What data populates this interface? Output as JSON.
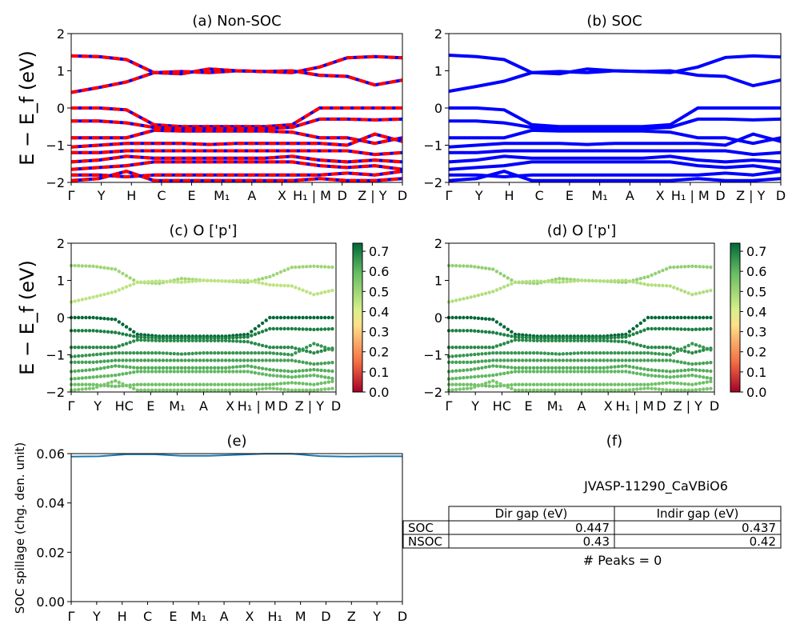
{
  "panels": {
    "a": {
      "title": "(a) Non-SOC"
    },
    "b": {
      "title": "(b) SOC"
    },
    "c": {
      "title": "(c)  O ['p']"
    },
    "d": {
      "title": "(d) O ['p']"
    },
    "e": {
      "title": "(e)"
    },
    "f": {
      "title": "(f)"
    }
  },
  "band_axis": {
    "ylabel": "E − E_f (eV)",
    "ylim": [
      -2,
      2
    ],
    "yticks": [
      "2",
      "1",
      "0",
      "−1",
      "−2"
    ]
  },
  "kpath_top": [
    "Γ",
    "Y",
    "H",
    "C",
    "E",
    "M₁",
    "A",
    "X",
    "H₁ | M",
    "D",
    "Z | Y",
    "D"
  ],
  "kpath_mid": [
    "Γ",
    "Y",
    "HC",
    "E",
    "M₁",
    "A",
    "X",
    "H₁ | M",
    "D",
    "Z | Y",
    "D"
  ],
  "kpath_bottom": [
    "Γ",
    "Y",
    "H",
    "C",
    "E",
    "M₁",
    "A",
    "X",
    "H₁",
    "M",
    "D",
    "Z",
    "Y",
    "D"
  ],
  "colorbar": {
    "ticks": [
      "0.0",
      "0.1",
      "0.2",
      "0.3",
      "0.4",
      "0.5",
      "0.6",
      "0.7"
    ],
    "range": [
      0.0,
      0.74
    ]
  },
  "colors": {
    "nonsoc_a": "#ff0000",
    "nonsoc_b": "#0000ff",
    "soc": "#0000ff",
    "spillage": "#1f77b4"
  },
  "table": {
    "title": "JVASP-11290_CaVBiO6",
    "headers": [
      "Dir gap (eV)",
      "Indir gap (eV)"
    ],
    "rows": [
      {
        "label": "SOC",
        "dir": "0.447",
        "indir": "0.437"
      },
      {
        "label": "NSOC",
        "dir": "0.43",
        "indir": "0.42"
      }
    ],
    "peaks": "# Peaks = 0"
  },
  "chart_data": [
    {
      "type": "line",
      "title": "(a) Non-SOC",
      "ylabel": "E − E_f (eV)",
      "ylim": [
        -2,
        2
      ],
      "x_ticks": [
        "Γ",
        "Y",
        "H",
        "C",
        "E",
        "M₁",
        "A",
        "X",
        "H₁ | M",
        "D",
        "Z | Y",
        "D"
      ],
      "x": [
        0,
        1,
        2,
        3,
        4,
        5,
        6,
        7,
        8,
        9,
        10,
        11,
        12
      ],
      "series": [
        {
          "values": [
            1.4,
            1.38,
            1.3,
            0.95,
            0.92,
            1.05,
            1.0,
            0.98,
            0.95,
            1.1,
            1.35,
            1.38,
            1.35
          ]
        },
        {
          "values": [
            0.42,
            0.55,
            0.7,
            0.95,
            0.98,
            0.95,
            1.0,
            0.98,
            1.0,
            0.88,
            0.85,
            0.62,
            0.75
          ]
        },
        {
          "values": [
            0.0,
            0.0,
            -0.05,
            -0.45,
            -0.5,
            -0.5,
            -0.5,
            -0.5,
            -0.45,
            0.0,
            0.0,
            0.0,
            0.0
          ]
        },
        {
          "values": [
            -0.35,
            -0.35,
            -0.4,
            -0.52,
            -0.55,
            -0.55,
            -0.55,
            -0.55,
            -0.52,
            -0.3,
            -0.3,
            -0.32,
            -0.3
          ]
        },
        {
          "values": [
            -0.8,
            -0.8,
            -0.8,
            -0.6,
            -0.62,
            -0.62,
            -0.62,
            -0.62,
            -0.65,
            -0.8,
            -0.8,
            -0.95,
            -0.8
          ]
        },
        {
          "values": [
            -1.05,
            -1.0,
            -0.95,
            -0.95,
            -0.95,
            -0.98,
            -0.95,
            -0.95,
            -0.95,
            -0.95,
            -1.0,
            -0.7,
            -0.9
          ]
        },
        {
          "values": [
            -1.2,
            -1.2,
            -1.15,
            -1.15,
            -1.15,
            -1.15,
            -1.15,
            -1.15,
            -1.15,
            -1.15,
            -1.15,
            -1.25,
            -1.2
          ]
        },
        {
          "values": [
            -1.45,
            -1.4,
            -1.3,
            -1.35,
            -1.35,
            -1.35,
            -1.35,
            -1.35,
            -1.3,
            -1.4,
            -1.45,
            -1.4,
            -1.45
          ]
        },
        {
          "values": [
            -1.65,
            -1.6,
            -1.55,
            -1.45,
            -1.45,
            -1.45,
            -1.45,
            -1.45,
            -1.45,
            -1.55,
            -1.6,
            -1.55,
            -1.65
          ]
        },
        {
          "values": [
            -1.8,
            -1.8,
            -1.85,
            -1.8,
            -1.8,
            -1.8,
            -1.8,
            -1.8,
            -1.8,
            -1.8,
            -1.75,
            -1.8,
            -1.7
          ]
        },
        {
          "values": [
            -1.95,
            -1.9,
            -1.7,
            -1.95,
            -1.95,
            -1.95,
            -1.95,
            -1.95,
            -1.95,
            -1.9,
            -1.95,
            -1.95,
            -1.9
          ]
        }
      ]
    },
    {
      "type": "line",
      "title": "(b) SOC",
      "ylim": [
        -2,
        2
      ],
      "x_ticks": [
        "Γ",
        "Y",
        "H",
        "C",
        "E",
        "M₁",
        "A",
        "X",
        "H₁ | M",
        "D",
        "Z | Y",
        "D"
      ],
      "x": [
        0,
        1,
        2,
        3,
        4,
        5,
        6,
        7,
        8,
        9,
        10,
        11,
        12
      ],
      "series": [
        {
          "values": [
            1.42,
            1.38,
            1.3,
            0.95,
            0.92,
            1.05,
            1.0,
            0.98,
            0.95,
            1.1,
            1.36,
            1.4,
            1.37
          ]
        },
        {
          "values": [
            0.45,
            0.58,
            0.72,
            0.95,
            0.98,
            0.95,
            1.0,
            0.98,
            1.0,
            0.88,
            0.85,
            0.6,
            0.75
          ]
        },
        {
          "values": [
            0.0,
            0.0,
            -0.05,
            -0.45,
            -0.5,
            -0.5,
            -0.5,
            -0.5,
            -0.45,
            0.0,
            0.0,
            0.0,
            0.0
          ]
        },
        {
          "values": [
            -0.35,
            -0.35,
            -0.4,
            -0.52,
            -0.55,
            -0.55,
            -0.55,
            -0.55,
            -0.52,
            -0.3,
            -0.3,
            -0.32,
            -0.3
          ]
        },
        {
          "values": [
            -0.8,
            -0.8,
            -0.8,
            -0.6,
            -0.62,
            -0.62,
            -0.62,
            -0.62,
            -0.65,
            -0.8,
            -0.8,
            -0.95,
            -0.8
          ]
        },
        {
          "values": [
            -1.05,
            -1.0,
            -0.95,
            -0.95,
            -0.95,
            -0.98,
            -0.95,
            -0.95,
            -0.95,
            -0.95,
            -1.0,
            -0.7,
            -0.9
          ]
        },
        {
          "values": [
            -1.2,
            -1.2,
            -1.15,
            -1.15,
            -1.15,
            -1.15,
            -1.15,
            -1.15,
            -1.15,
            -1.15,
            -1.15,
            -1.25,
            -1.2
          ]
        },
        {
          "values": [
            -1.45,
            -1.4,
            -1.3,
            -1.35,
            -1.35,
            -1.35,
            -1.35,
            -1.35,
            -1.3,
            -1.4,
            -1.45,
            -1.4,
            -1.45
          ]
        },
        {
          "values": [
            -1.65,
            -1.6,
            -1.55,
            -1.45,
            -1.45,
            -1.45,
            -1.45,
            -1.45,
            -1.45,
            -1.55,
            -1.6,
            -1.55,
            -1.65
          ]
        },
        {
          "values": [
            -1.8,
            -1.8,
            -1.85,
            -1.8,
            -1.8,
            -1.8,
            -1.8,
            -1.8,
            -1.8,
            -1.8,
            -1.75,
            -1.8,
            -1.7
          ]
        },
        {
          "values": [
            -1.95,
            -1.9,
            -1.7,
            -1.95,
            -1.95,
            -1.95,
            -1.95,
            -1.95,
            -1.95,
            -1.9,
            -1.95,
            -1.95,
            -1.9
          ]
        }
      ]
    },
    {
      "type": "scatter",
      "title": "(c)  O ['p']",
      "ylim": [
        -2,
        2
      ],
      "color_range": [
        0.0,
        0.74
      ],
      "series_weights": [
        0.5,
        0.45,
        0.74,
        0.7,
        0.68,
        0.66,
        0.64,
        0.62,
        0.6,
        0.58,
        0.56
      ]
    },
    {
      "type": "scatter",
      "title": "(d) O ['p']",
      "ylim": [
        -2,
        2
      ],
      "color_range": [
        0.0,
        0.74
      ],
      "series_weights": [
        0.52,
        0.47,
        0.74,
        0.7,
        0.68,
        0.66,
        0.64,
        0.62,
        0.6,
        0.58,
        0.56
      ]
    },
    {
      "type": "line",
      "title": "(e)",
      "ylabel": "SOC spillage (chg. den. unit)",
      "ylim": [
        0.0,
        0.06
      ],
      "yticks": [
        "0.06",
        "0.04",
        "0.02",
        "0.00"
      ],
      "x": [
        0,
        1,
        2,
        3,
        4,
        5,
        6,
        7,
        8,
        9,
        10,
        11,
        12
      ],
      "values": [
        0.0588,
        0.0589,
        0.0597,
        0.0597,
        0.0591,
        0.0591,
        0.0595,
        0.0599,
        0.0599,
        0.059,
        0.0588,
        0.0589,
        0.0589
      ]
    }
  ]
}
